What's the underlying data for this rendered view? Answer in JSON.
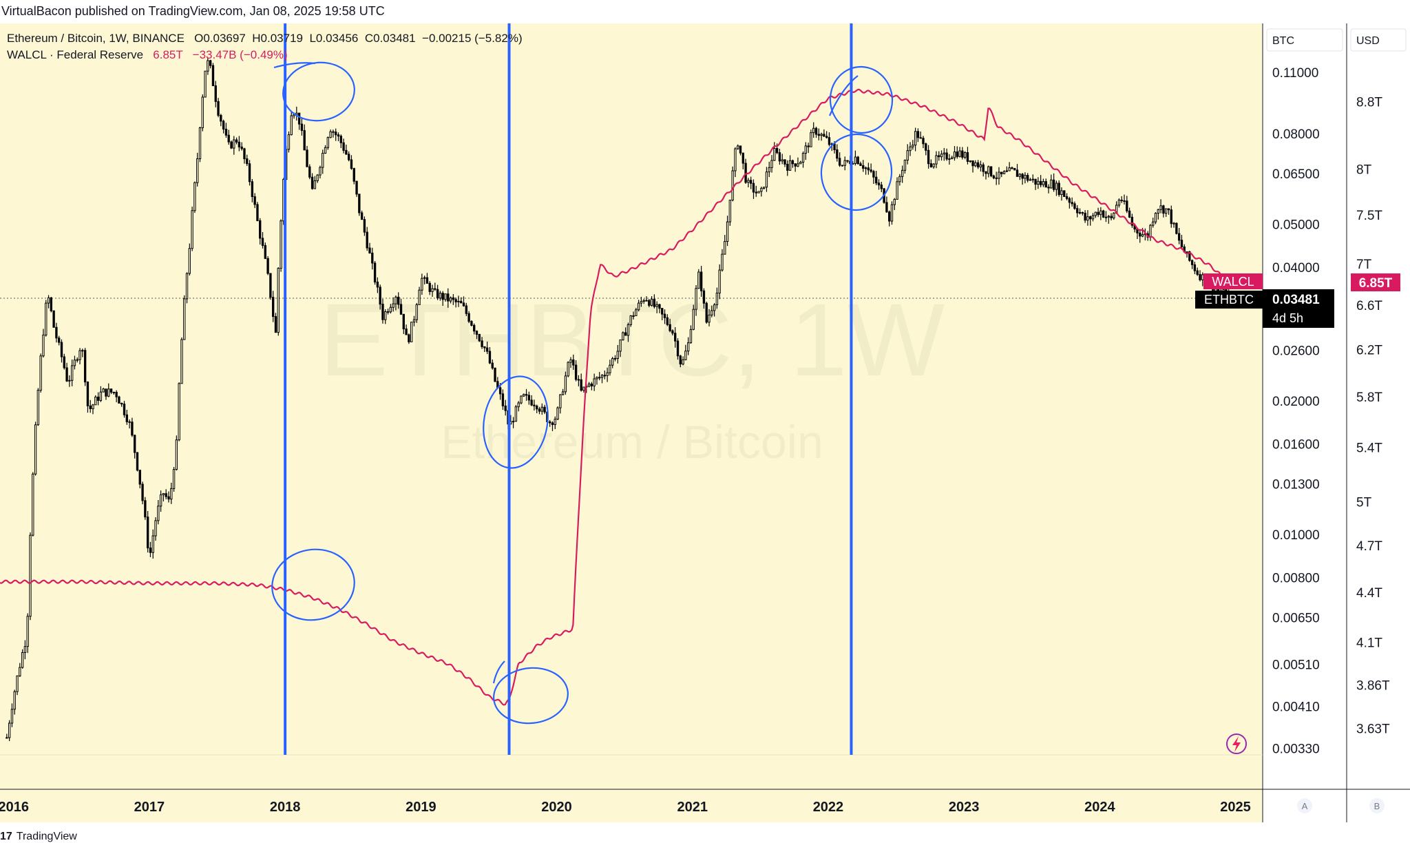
{
  "publish_line": "VirtualBacon published on TradingView.com, Jan 08, 2025 19:58 UTC",
  "footer": {
    "logo_mark": "17",
    "brand": "TradingView"
  },
  "legend": {
    "symbol": "Ethereum / Bitcoin, 1W, BINANCE",
    "open": "O0.03697",
    "high": "H0.03719",
    "low": "L0.03456",
    "close": "C0.03481",
    "change": "−0.00215 (−5.82%)",
    "indicator_name": "WALCL · Federal Reserve",
    "indicator_value": "6.85T",
    "indicator_change": "−33.47B (−0.49%)"
  },
  "scale_buttons": {
    "btc": "BTC",
    "usd": "USD",
    "a": "A",
    "b": "B"
  },
  "watermark": {
    "line1": "ETHBTC, 1W",
    "line2": "Ethereum / Bitcoin"
  },
  "price_labels": {
    "walcl_tag": "WALCL",
    "walcl_value": "6.85T",
    "ethbtc_tag": "ETHBTC",
    "ethbtc_value": "0.03481",
    "countdown": "4d 5h"
  },
  "colors": {
    "background": "#fdf8d3",
    "candles": "#000000",
    "walcl_line": "#d81b60",
    "vertical_markers": "#2962ff",
    "annotations": "#2962ff",
    "walcl_label_bg": "#d81b60",
    "ethbtc_label_bg": "#000000"
  },
  "chart_data": {
    "type": "line",
    "title": "Ethereum / Bitcoin, 1W, BINANCE",
    "x_axis_labels": [
      "2016",
      "2017",
      "2018",
      "2019",
      "2020",
      "2021",
      "2022",
      "2023",
      "2024",
      "2025"
    ],
    "x_range": [
      2015.9,
      2025.2
    ],
    "btc_axis_ticks": [
      "0.11000",
      "0.08000",
      "0.06500",
      "0.05000",
      "0.04000",
      "0.02600",
      "0.02000",
      "0.01600",
      "0.01300",
      "0.01000",
      "0.00800",
      "0.00650",
      "0.00510",
      "0.00410",
      "0.00330"
    ],
    "usd_axis_ticks": [
      "8.8T",
      "8T",
      "7.5T",
      "7T",
      "6.6T",
      "6.2T",
      "5.8T",
      "5.4T",
      "5T",
      "4.7T",
      "4.4T",
      "4.1T",
      "3.86T",
      "3.63T"
    ],
    "btc_range": [
      0.0032,
      0.125
    ],
    "usd_range_T": [
      3.5,
      9.5
    ],
    "log_scale": true,
    "grid": false,
    "vertical_markers": [
      2018.0,
      2019.65,
      2022.17
    ],
    "series": [
      {
        "name": "ETHBTC",
        "points": [
          [
            2015.95,
            0.0035
          ],
          [
            2016.1,
            0.006
          ],
          [
            2016.15,
            0.015
          ],
          [
            2016.2,
            0.025
          ],
          [
            2016.25,
            0.035
          ],
          [
            2016.3,
            0.029
          ],
          [
            2016.4,
            0.022
          ],
          [
            2016.5,
            0.027
          ],
          [
            2016.55,
            0.019
          ],
          [
            2016.65,
            0.021
          ],
          [
            2016.75,
            0.021
          ],
          [
            2016.85,
            0.018
          ],
          [
            2016.95,
            0.012
          ],
          [
            2017.0,
            0.0088
          ],
          [
            2017.05,
            0.011
          ],
          [
            2017.1,
            0.0125
          ],
          [
            2017.15,
            0.0118
          ],
          [
            2017.2,
            0.016
          ],
          [
            2017.25,
            0.031
          ],
          [
            2017.3,
            0.046
          ],
          [
            2017.35,
            0.068
          ],
          [
            2017.42,
            0.118
          ],
          [
            2017.45,
            0.112
          ],
          [
            2017.5,
            0.092
          ],
          [
            2017.58,
            0.075
          ],
          [
            2017.65,
            0.078
          ],
          [
            2017.72,
            0.067
          ],
          [
            2017.8,
            0.05
          ],
          [
            2017.88,
            0.037
          ],
          [
            2017.93,
            0.028
          ],
          [
            2018.0,
            0.07
          ],
          [
            2018.05,
            0.092
          ],
          [
            2018.1,
            0.087
          ],
          [
            2018.15,
            0.071
          ],
          [
            2018.2,
            0.059
          ],
          [
            2018.27,
            0.071
          ],
          [
            2018.33,
            0.083
          ],
          [
            2018.4,
            0.078
          ],
          [
            2018.47,
            0.07
          ],
          [
            2018.55,
            0.053
          ],
          [
            2018.65,
            0.039
          ],
          [
            2018.72,
            0.031
          ],
          [
            2018.82,
            0.035
          ],
          [
            2018.9,
            0.027
          ],
          [
            2018.95,
            0.031
          ],
          [
            2019.0,
            0.038
          ],
          [
            2019.1,
            0.035
          ],
          [
            2019.2,
            0.034
          ],
          [
            2019.3,
            0.033
          ],
          [
            2019.4,
            0.029
          ],
          [
            2019.48,
            0.026
          ],
          [
            2019.55,
            0.022
          ],
          [
            2019.62,
            0.019
          ],
          [
            2019.65,
            0.0175
          ],
          [
            2019.75,
            0.0205
          ],
          [
            2019.85,
            0.0198
          ],
          [
            2019.95,
            0.018
          ],
          [
            2020.0,
            0.0185
          ],
          [
            2020.1,
            0.025
          ],
          [
            2020.18,
            0.021
          ],
          [
            2020.25,
            0.022
          ],
          [
            2020.35,
            0.023
          ],
          [
            2020.45,
            0.026
          ],
          [
            2020.55,
            0.031
          ],
          [
            2020.65,
            0.0345
          ],
          [
            2020.75,
            0.032
          ],
          [
            2020.85,
            0.029
          ],
          [
            2020.92,
            0.024
          ],
          [
            2020.97,
            0.027
          ],
          [
            2021.05,
            0.039
          ],
          [
            2021.1,
            0.03
          ],
          [
            2021.18,
            0.035
          ],
          [
            2021.25,
            0.048
          ],
          [
            2021.33,
            0.078
          ],
          [
            2021.4,
            0.062
          ],
          [
            2021.5,
            0.058
          ],
          [
            2021.6,
            0.073
          ],
          [
            2021.7,
            0.068
          ],
          [
            2021.8,
            0.07
          ],
          [
            2021.9,
            0.082
          ],
          [
            2022.0,
            0.077
          ],
          [
            2022.1,
            0.068
          ],
          [
            2022.2,
            0.071
          ],
          [
            2022.3,
            0.066
          ],
          [
            2022.4,
            0.059
          ],
          [
            2022.45,
            0.052
          ],
          [
            2022.55,
            0.068
          ],
          [
            2022.65,
            0.081
          ],
          [
            2022.75,
            0.069
          ],
          [
            2022.85,
            0.071
          ],
          [
            2022.95,
            0.073
          ],
          [
            2023.05,
            0.07
          ],
          [
            2023.15,
            0.067
          ],
          [
            2023.25,
            0.064
          ],
          [
            2023.35,
            0.066
          ],
          [
            2023.45,
            0.064
          ],
          [
            2023.55,
            0.062
          ],
          [
            2023.65,
            0.062
          ],
          [
            2023.75,
            0.058
          ],
          [
            2023.82,
            0.055
          ],
          [
            2023.9,
            0.051
          ],
          [
            2024.0,
            0.054
          ],
          [
            2024.08,
            0.051
          ],
          [
            2024.15,
            0.058
          ],
          [
            2024.25,
            0.049
          ],
          [
            2024.35,
            0.047
          ],
          [
            2024.42,
            0.055
          ],
          [
            2024.5,
            0.054
          ],
          [
            2024.58,
            0.046
          ],
          [
            2024.65,
            0.042
          ],
          [
            2024.72,
            0.039
          ],
          [
            2024.8,
            0.037
          ],
          [
            2024.85,
            0.036
          ],
          [
            2024.9,
            0.035
          ],
          [
            2024.96,
            0.0348
          ]
        ]
      },
      {
        "name": "WALCL",
        "points": [
          [
            2015.9,
            4.47
          ],
          [
            2016.5,
            4.47
          ],
          [
            2017.0,
            4.46
          ],
          [
            2017.5,
            4.46
          ],
          [
            2017.8,
            4.45
          ],
          [
            2018.0,
            4.42
          ],
          [
            2018.2,
            4.37
          ],
          [
            2018.4,
            4.3
          ],
          [
            2018.6,
            4.21
          ],
          [
            2018.8,
            4.11
          ],
          [
            2019.0,
            4.04
          ],
          [
            2019.2,
            3.98
          ],
          [
            2019.35,
            3.9
          ],
          [
            2019.5,
            3.8
          ],
          [
            2019.62,
            3.76
          ],
          [
            2019.65,
            3.78
          ],
          [
            2019.72,
            3.98
          ],
          [
            2019.85,
            4.08
          ],
          [
            2019.95,
            4.13
          ],
          [
            2020.12,
            4.18
          ],
          [
            2020.18,
            5.25
          ],
          [
            2020.25,
            6.55
          ],
          [
            2020.32,
            7.0
          ],
          [
            2020.42,
            6.88
          ],
          [
            2020.55,
            6.95
          ],
          [
            2020.7,
            7.05
          ],
          [
            2020.85,
            7.15
          ],
          [
            2021.0,
            7.35
          ],
          [
            2021.2,
            7.65
          ],
          [
            2021.4,
            7.95
          ],
          [
            2021.6,
            8.25
          ],
          [
            2021.8,
            8.55
          ],
          [
            2022.0,
            8.85
          ],
          [
            2022.2,
            8.95
          ],
          [
            2022.45,
            8.9
          ],
          [
            2022.7,
            8.75
          ],
          [
            2022.95,
            8.55
          ],
          [
            2023.15,
            8.35
          ],
          [
            2023.18,
            8.75
          ],
          [
            2023.25,
            8.5
          ],
          [
            2023.4,
            8.35
          ],
          [
            2023.6,
            8.1
          ],
          [
            2023.8,
            7.85
          ],
          [
            2024.0,
            7.65
          ],
          [
            2024.2,
            7.45
          ],
          [
            2024.4,
            7.25
          ],
          [
            2024.6,
            7.15
          ],
          [
            2024.8,
            7.0
          ],
          [
            2024.93,
            6.85
          ]
        ]
      }
    ]
  }
}
